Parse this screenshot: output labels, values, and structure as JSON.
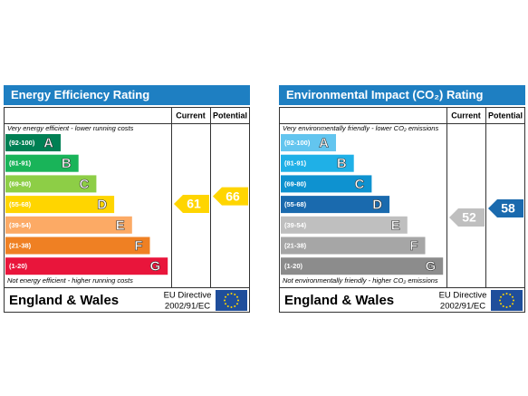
{
  "panels": [
    {
      "title": "Energy Efficiency Rating",
      "headers": [
        "Current",
        "Potential"
      ],
      "top_note": "Very energy efficient - lower running costs",
      "bottom_note": "Not energy efficient - higher running costs",
      "bands": [
        {
          "range": "(92-100)",
          "letter": "A",
          "color": "#008054"
        },
        {
          "range": "(81-91)",
          "letter": "B",
          "color": "#19b459"
        },
        {
          "range": "(69-80)",
          "letter": "C",
          "color": "#8dce46"
        },
        {
          "range": "(55-68)",
          "letter": "D",
          "color": "#ffd500"
        },
        {
          "range": "(39-54)",
          "letter": "E",
          "color": "#fcaa65"
        },
        {
          "range": "(21-38)",
          "letter": "F",
          "color": "#ef8023"
        },
        {
          "range": "(1-20)",
          "letter": "G",
          "color": "#e9153b"
        }
      ],
      "current": {
        "value": 61,
        "color": "#ffd500"
      },
      "potential": {
        "value": 66,
        "color": "#ffd500"
      },
      "footer": "England & Wales",
      "directive": "EU Directive",
      "directive_code": "2002/91/EC"
    },
    {
      "title": "Environmental Impact (CO₂) Rating",
      "headers": [
        "Current",
        "Potential"
      ],
      "top_note": "Very environmentally friendly - lower CO₂ emissions",
      "bottom_note": "Not environmentally friendly - higher CO₂ emissions",
      "bands": [
        {
          "range": "(92-100)",
          "letter": "A",
          "color": "#63c5ef"
        },
        {
          "range": "(81-91)",
          "letter": "B",
          "color": "#1fb0e7"
        },
        {
          "range": "(69-80)",
          "letter": "C",
          "color": "#0e92d0"
        },
        {
          "range": "(55-68)",
          "letter": "D",
          "color": "#1a6aae"
        },
        {
          "range": "(39-54)",
          "letter": "E",
          "color": "#bfbfbf"
        },
        {
          "range": "(21-38)",
          "letter": "F",
          "color": "#a6a6a6"
        },
        {
          "range": "(1-20)",
          "letter": "G",
          "color": "#8c8c8c"
        }
      ],
      "current": {
        "value": 52,
        "color": "#bfbfbf"
      },
      "potential": {
        "value": 58,
        "color": "#1a6aae"
      },
      "footer": "England & Wales",
      "directive": "EU Directive",
      "directive_code": "2002/91/EC"
    }
  ]
}
